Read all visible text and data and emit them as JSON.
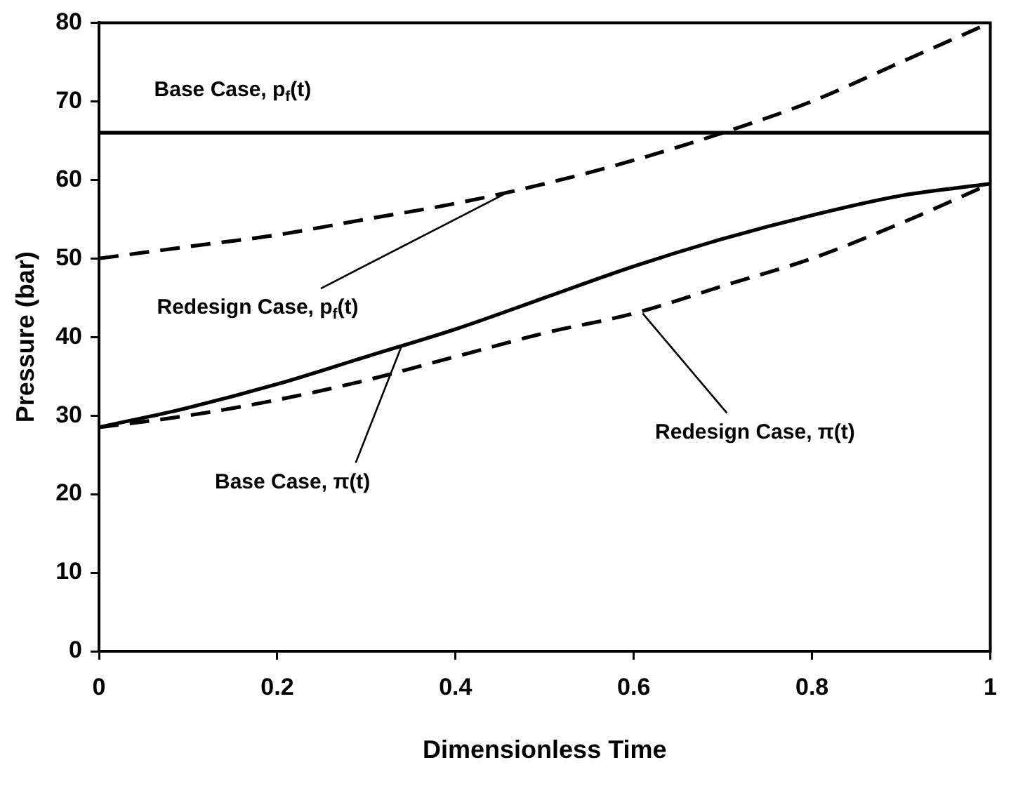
{
  "chart_data": {
    "type": "line",
    "xlabel": "Dimensionless Time",
    "ylabel": "Pressure (bar)",
    "x": [
      0,
      0.1,
      0.2,
      0.3,
      0.4,
      0.5,
      0.6,
      0.7,
      0.8,
      0.9,
      1
    ],
    "xlim": [
      0,
      1
    ],
    "xticks": [
      0,
      0.2,
      0.4,
      0.6,
      0.8,
      1
    ],
    "ylim": [
      0,
      80
    ],
    "yticks": [
      0,
      10,
      20,
      30,
      40,
      50,
      60,
      70,
      80
    ],
    "grid": false,
    "legend": false,
    "marker": "none",
    "series": [
      {
        "color": "#000000",
        "line_style": "solid",
        "values": [
          66,
          66,
          66,
          66,
          66,
          66,
          66,
          66,
          66,
          66,
          66
        ]
      },
      {
        "color": "#000000",
        "line_style": "dashed",
        "values": [
          50,
          51.5,
          53,
          55,
          57,
          59.5,
          62.5,
          66,
          70,
          75,
          80
        ]
      },
      {
        "color": "#000000",
        "line_style": "solid",
        "values": [
          28.5,
          31,
          34,
          37.5,
          41,
          45,
          49,
          52.5,
          55.5,
          58,
          59.5
        ]
      },
      {
        "color": "#000000",
        "line_style": "dashed",
        "values": [
          28.5,
          30,
          32,
          34.5,
          37.5,
          40.5,
          43,
          46.5,
          50,
          54.5,
          59.5
        ]
      }
    ],
    "annotations": [
      {
        "text": "Base Case, p$_{f}$(t)",
        "x": 0.15,
        "y": 66
      },
      {
        "text": "Redesign Case, p$_{f}$(t)",
        "x": 0.46,
        "y": 58.5
      },
      {
        "text": "Base Case, π(t)",
        "x": 0.34,
        "y": 39
      },
      {
        "text": "Redesign Case, π(t)",
        "x": 0.61,
        "y": 43
      }
    ]
  }
}
